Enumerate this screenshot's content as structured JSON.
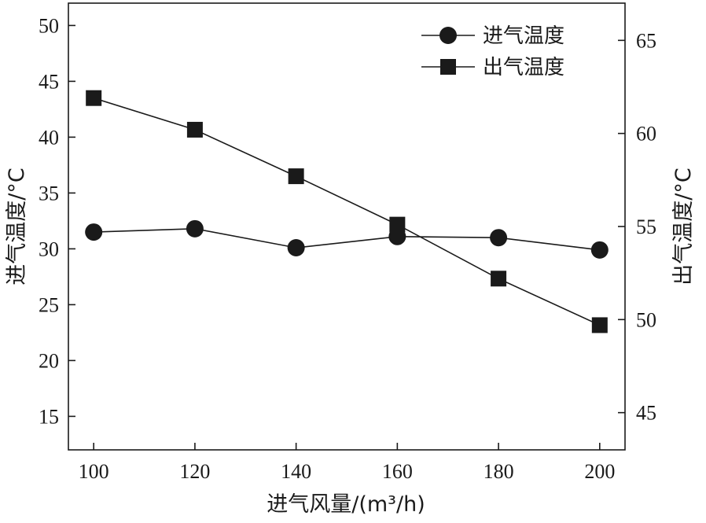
{
  "chart_data": {
    "type": "line",
    "title": "",
    "xlabel": "进气风量/(m³/h)",
    "ylabel_left": "进气温度/°C",
    "ylabel_right": "出气温度/°C",
    "x": [
      100,
      120,
      140,
      160,
      180,
      200
    ],
    "xlim": [
      95,
      205
    ],
    "x_ticks": [
      "100",
      "120",
      "140",
      "160",
      "180",
      "200"
    ],
    "ylim_left": [
      12,
      52
    ],
    "y_ticks_left": [
      "15",
      "20",
      "25",
      "30",
      "35",
      "40",
      "45",
      "50"
    ],
    "ylim_right": [
      43,
      67
    ],
    "y_ticks_right": [
      "45",
      "50",
      "55",
      "60",
      "65"
    ],
    "grid": false,
    "legend_position": "top-right",
    "series": [
      {
        "name": "进气温度",
        "axis": "left",
        "marker": "circle",
        "values": [
          31.5,
          31.8,
          30.1,
          31.1,
          31.0,
          29.9
        ]
      },
      {
        "name": "出气温度",
        "axis": "right",
        "marker": "square",
        "values": [
          61.9,
          60.2,
          57.7,
          55.1,
          52.2,
          49.7
        ]
      }
    ],
    "colors": {
      "line": "#1a1a1a",
      "marker": "#1a1a1a"
    }
  }
}
